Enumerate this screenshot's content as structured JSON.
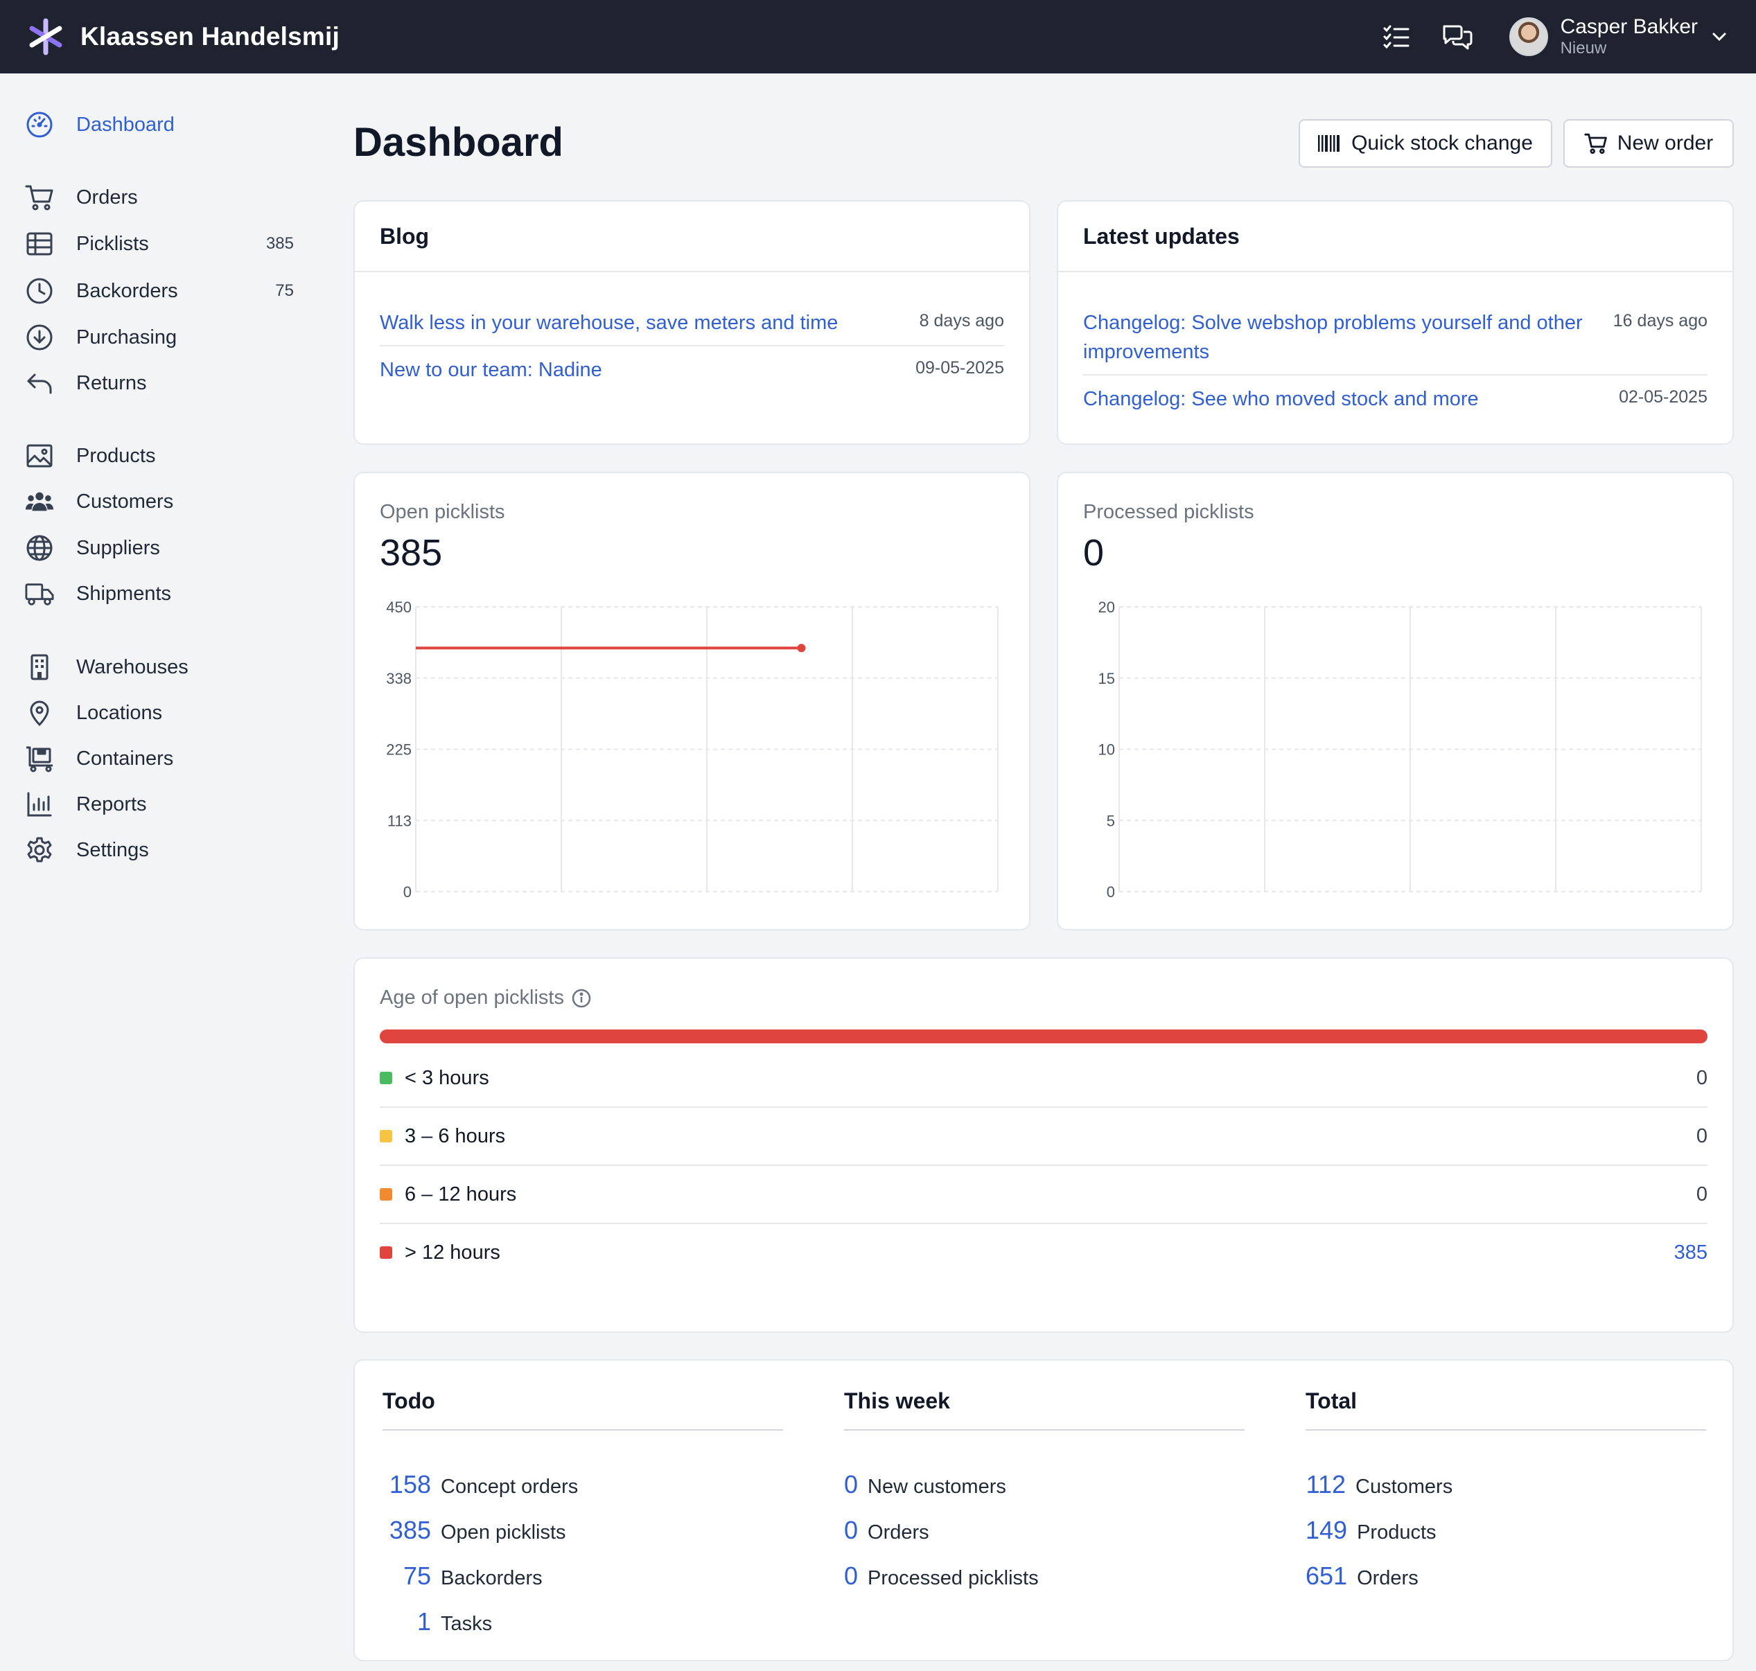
{
  "topbar": {
    "company": "Klaassen Handelsmij",
    "user_name": "Casper Bakker",
    "user_role": "Nieuw",
    "icons": [
      "checklist-icon",
      "chat-icon",
      "chevron-down-icon"
    ]
  },
  "sidebar": {
    "groups": [
      [
        {
          "label": "Dashboard",
          "icon": "dashboard-icon",
          "active": true
        }
      ],
      [
        {
          "label": "Orders",
          "icon": "cart-icon"
        },
        {
          "label": "Picklists",
          "icon": "table-icon",
          "count": "385"
        },
        {
          "label": "Backorders",
          "icon": "clock-icon",
          "count": "75"
        },
        {
          "label": "Purchasing",
          "icon": "download-circle-icon"
        },
        {
          "label": "Returns",
          "icon": "return-arrow-icon"
        }
      ],
      [
        {
          "label": "Products",
          "icon": "image-icon"
        },
        {
          "label": "Customers",
          "icon": "users-icon"
        },
        {
          "label": "Suppliers",
          "icon": "globe-icon"
        },
        {
          "label": "Shipments",
          "icon": "truck-icon"
        }
      ],
      [
        {
          "label": "Warehouses",
          "icon": "building-icon"
        },
        {
          "label": "Locations",
          "icon": "map-pin-icon"
        },
        {
          "label": "Containers",
          "icon": "cart-box-icon"
        },
        {
          "label": "Reports",
          "icon": "bar-chart-icon"
        },
        {
          "label": "Settings",
          "icon": "gear-icon"
        }
      ]
    ]
  },
  "header": {
    "title": "Dashboard",
    "quick_stock_label": "Quick stock change",
    "new_order_label": "New order"
  },
  "blog": {
    "title": "Blog",
    "items": [
      {
        "title": "Walk less in your warehouse, save meters and time",
        "date": "8 days ago"
      },
      {
        "title": "New to our team: Nadine",
        "date": "09-05-2025"
      }
    ]
  },
  "updates": {
    "title": "Latest updates",
    "items": [
      {
        "title": "Changelog: Solve webshop problems yourself and other improvements",
        "date": "16 days ago"
      },
      {
        "title": "Changelog: See who moved stock and more",
        "date": "02-05-2025"
      }
    ]
  },
  "open_picklists": {
    "label": "Open picklists",
    "value": "385"
  },
  "processed_picklists": {
    "label": "Processed picklists",
    "value": "0"
  },
  "chart_data": [
    {
      "type": "line",
      "title": "Open picklists",
      "yticks": [
        "450",
        "338",
        "225",
        "113",
        "0"
      ],
      "ylim": [
        0,
        450
      ],
      "x_columns": 4,
      "grid": true,
      "series": [
        {
          "color": "#e0443e",
          "x": [
            0,
            2.65
          ],
          "y": [
            385,
            385
          ],
          "end_marker": true
        }
      ]
    },
    {
      "type": "line",
      "title": "Processed picklists",
      "yticks": [
        "20",
        "15",
        "10",
        "5",
        "0"
      ],
      "ylim": [
        0,
        20
      ],
      "x_columns": 4,
      "grid": true,
      "series": []
    }
  ],
  "age": {
    "title": "Age of open picklists",
    "total": 385,
    "rows": [
      {
        "label": "< 3 hours",
        "value": "0",
        "color": "#4cbb5f"
      },
      {
        "label": "3 – 6 hours",
        "value": "0",
        "color": "#f6c343"
      },
      {
        "label": "6 – 12 hours",
        "value": "0",
        "color": "#f08b30"
      },
      {
        "label": "> 12 hours",
        "value": "385",
        "color": "#e0443e",
        "link": true
      }
    ]
  },
  "summary": {
    "todo": {
      "title": "Todo",
      "rows": [
        {
          "num": "158",
          "label": "Concept orders"
        },
        {
          "num": "385",
          "label": "Open picklists"
        },
        {
          "num": "75",
          "label": "Backorders"
        },
        {
          "num": "1",
          "label": "Tasks"
        }
      ]
    },
    "week": {
      "title": "This week",
      "rows": [
        {
          "num": "0",
          "label": "New customers"
        },
        {
          "num": "0",
          "label": "Orders"
        },
        {
          "num": "0",
          "label": "Processed picklists"
        }
      ]
    },
    "total": {
      "title": "Total",
      "rows": [
        {
          "num": "112",
          "label": "Customers"
        },
        {
          "num": "149",
          "label": "Products"
        },
        {
          "num": "651",
          "label": "Orders"
        }
      ]
    }
  }
}
